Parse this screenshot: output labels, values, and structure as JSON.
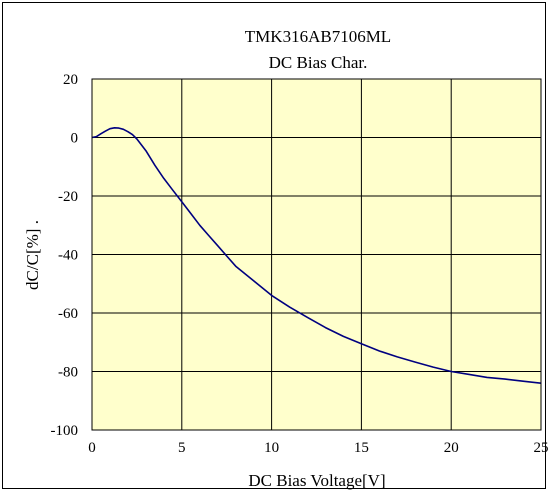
{
  "chart_data": {
    "type": "line",
    "title": "TMK316AB7106ML",
    "subtitle": "DC Bias Char.",
    "xlabel": "DC Bias Voltage[V]",
    "ylabel": "dC/C[%] .",
    "xlim": [
      0,
      25
    ],
    "ylim": [
      -100,
      20
    ],
    "xticks": [
      0,
      5,
      10,
      15,
      20,
      25
    ],
    "yticks": [
      20,
      0,
      -20,
      -40,
      -60,
      -80,
      -100
    ],
    "grid": true,
    "colors": {
      "plot_bg": "#ffffcc",
      "line": "#000080",
      "grid": "#000000"
    },
    "series": [
      {
        "x": [
          0,
          0.25,
          0.5,
          0.75,
          1.0,
          1.25,
          1.5,
          1.75,
          2.0,
          2.25,
          2.5,
          3.0,
          3.5,
          4.0,
          4.5,
          5.0,
          5.5,
          6.0,
          6.5,
          7.0,
          7.5,
          8.0,
          9.0,
          10.0,
          11.0,
          12.0,
          13.0,
          14.0,
          15.0,
          16.0,
          17.0,
          18.0,
          19.0,
          20.0,
          21.0,
          22.0,
          23.0,
          24.0,
          25.0
        ],
        "y": [
          0,
          0.3,
          1.3,
          2.2,
          3.0,
          3.3,
          3.2,
          2.8,
          2.0,
          1.0,
          -0.5,
          -4.5,
          -9.5,
          -14.0,
          -18.0,
          -22.0,
          -26.0,
          -30.0,
          -33.5,
          -37.0,
          -40.5,
          -44.0,
          -49.0,
          -54.0,
          -58.0,
          -61.5,
          -65.0,
          -68.0,
          -70.5,
          -73.0,
          -75.0,
          -76.8,
          -78.5,
          -80.0,
          -81.0,
          -82.0,
          -82.6,
          -83.3,
          -84.0
        ]
      }
    ]
  }
}
